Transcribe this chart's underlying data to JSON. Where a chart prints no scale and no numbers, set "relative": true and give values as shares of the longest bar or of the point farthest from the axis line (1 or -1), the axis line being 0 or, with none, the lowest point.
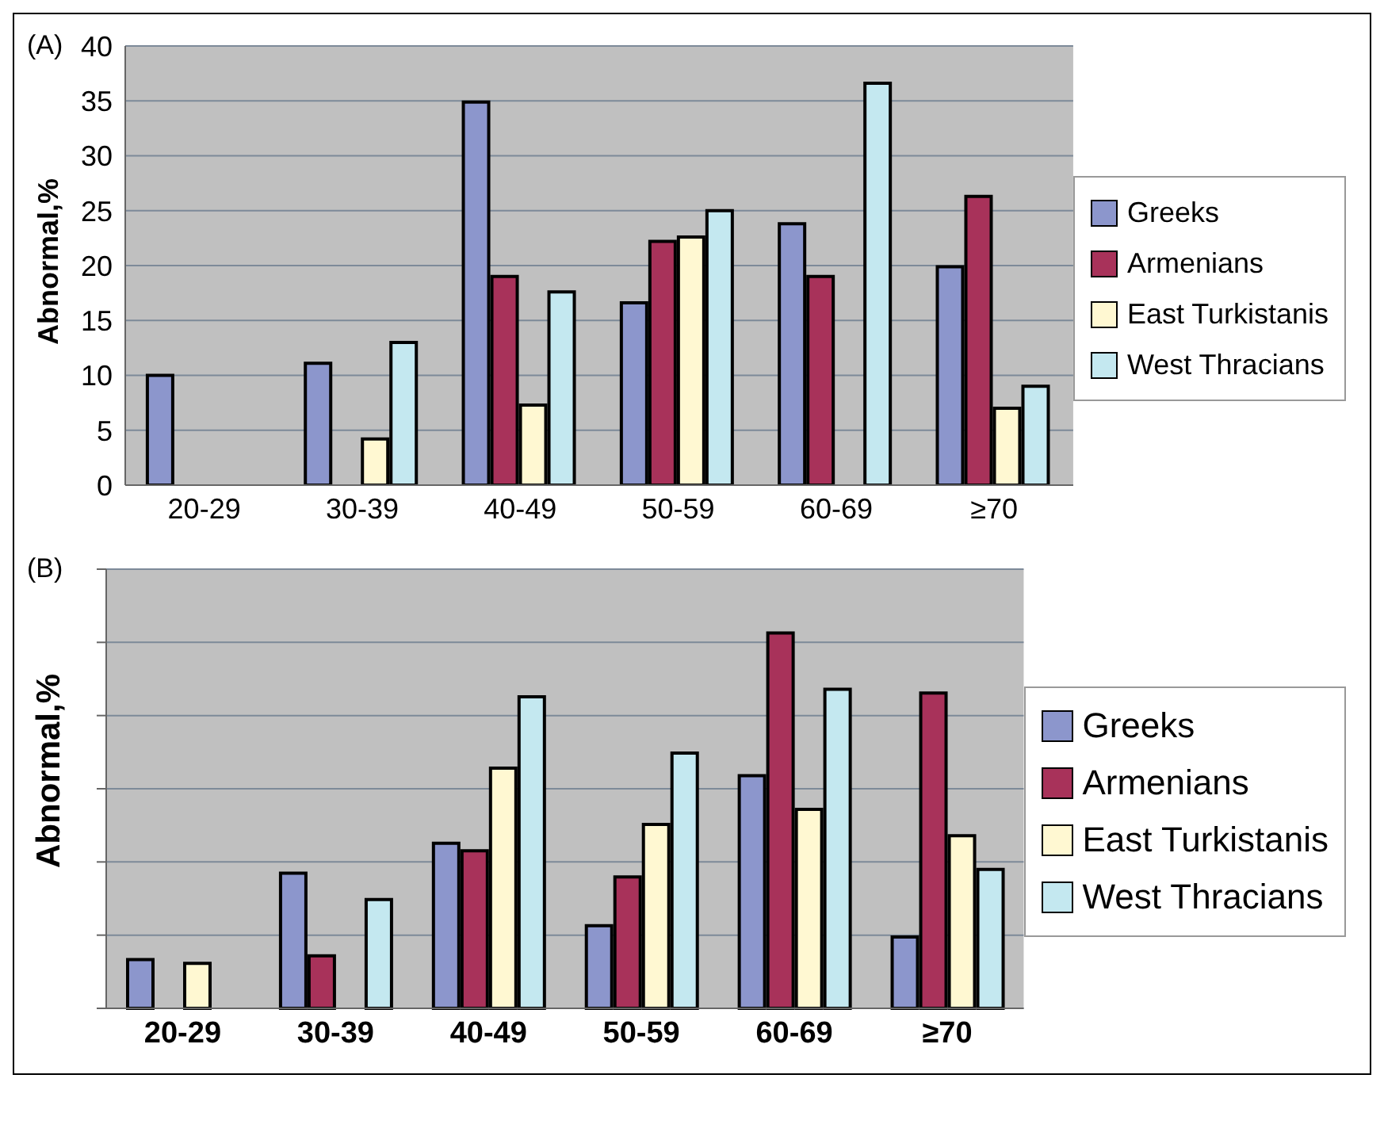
{
  "chart_data": [
    {
      "type": "bar",
      "title": "(A)",
      "ylabel": "Abnormal,%",
      "categories": [
        "20-29",
        "30-39",
        "40-49",
        "50-59",
        "60-69",
        "≥70"
      ],
      "series": [
        {
          "name": "Greeks",
          "color": "#8c96cc",
          "values": [
            10,
            11.1,
            34.9,
            16.6,
            23.8,
            19.9
          ]
        },
        {
          "name": "Armenians",
          "color": "#a8325a",
          "values": [
            null,
            null,
            19,
            22.2,
            19,
            26.3
          ]
        },
        {
          "name": "East Turkistanis",
          "color": "#fff8d2",
          "values": [
            null,
            4.2,
            7.3,
            22.6,
            null,
            7
          ]
        },
        {
          "name": "West Thracians",
          "color": "#c4e8f0",
          "values": [
            null,
            13,
            17.6,
            25,
            36.6,
            9
          ]
        }
      ],
      "ylim": [
        0,
        40
      ],
      "yticks": [
        0,
        5,
        10,
        15,
        20,
        25,
        30,
        35,
        40
      ],
      "grid": "y",
      "legend": "right"
    },
    {
      "type": "bar",
      "title": "(B)",
      "ylabel": "Abnormal,%",
      "relative": true,
      "categories": [
        "20-29",
        "30-39",
        "40-49",
        "50-59",
        "60-69",
        "≥70"
      ],
      "series": [
        {
          "name": "Greeks",
          "color": "#8c96cc",
          "values": [
            0.13,
            0.36,
            0.44,
            0.22,
            0.62,
            0.19
          ]
        },
        {
          "name": "Armenians",
          "color": "#a8325a",
          "values": [
            null,
            0.14,
            0.42,
            0.35,
            1,
            0.84
          ]
        },
        {
          "name": "East Turkistanis",
          "color": "#fff8d2",
          "values": [
            0.12,
            null,
            0.64,
            0.49,
            0.53,
            0.46
          ]
        },
        {
          "name": "West Thracians",
          "color": "#c4e8f0",
          "values": [
            null,
            0.29,
            0.83,
            0.68,
            0.85,
            0.37
          ]
        }
      ],
      "grid": "y",
      "legend": "right"
    }
  ]
}
